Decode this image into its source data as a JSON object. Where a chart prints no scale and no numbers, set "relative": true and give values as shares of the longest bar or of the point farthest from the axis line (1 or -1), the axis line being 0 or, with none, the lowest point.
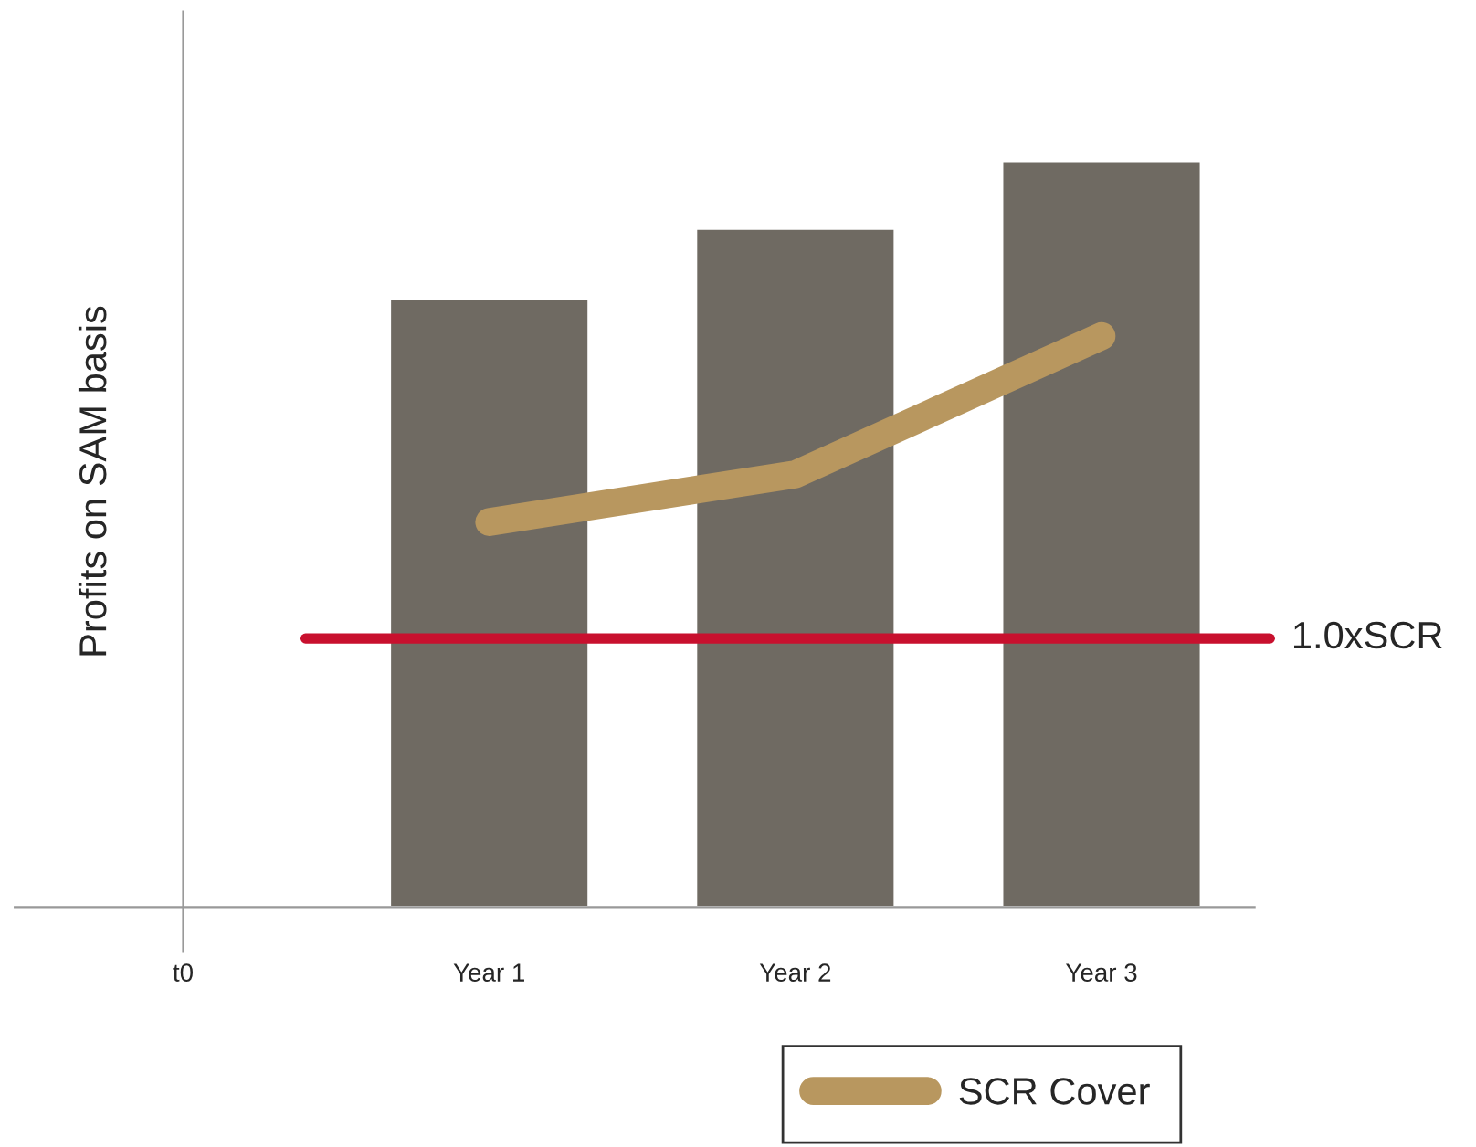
{
  "chart_data": {
    "type": "bar",
    "relative": true,
    "ylabel": "Profits on SAM basis",
    "categories": [
      "t0",
      "Year 1",
      "Year 2",
      "Year 3"
    ],
    "series": [
      {
        "color": "#6f6a62",
        "values": [
          null,
          0.815,
          0.909,
          1.0
        ]
      },
      {
        "type": "line",
        "name": "SCR Cover",
        "color": "#b8975f",
        "values": [
          null,
          0.516,
          0.58,
          0.765
        ]
      }
    ],
    "ref_lines": [
      {
        "axis": "y",
        "value": 0.36,
        "label": "1.0xSCR",
        "color": "#c8102e"
      }
    ],
    "legend": "bottom"
  }
}
